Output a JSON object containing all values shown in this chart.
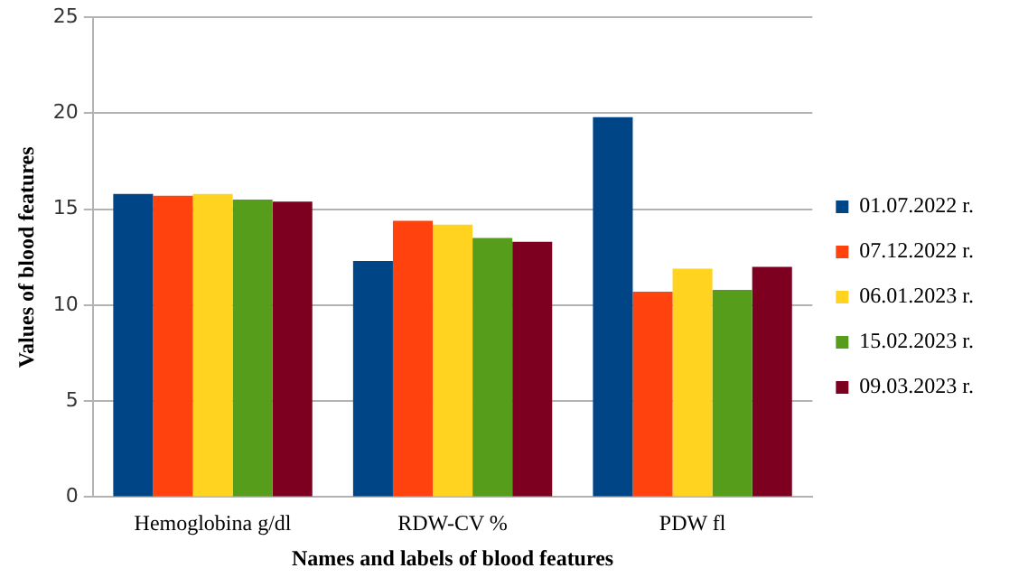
{
  "chart_data": {
    "type": "bar",
    "xlabel": "Names and labels of blood features",
    "ylabel": "Values of blood features",
    "categories": [
      "Hemoglobina g/dl",
      "RDW-CV %",
      "PDW fl"
    ],
    "series": [
      {
        "name": "01.07.2022 r.",
        "color": "#004586",
        "values": [
          15.8,
          12.3,
          19.8
        ]
      },
      {
        "name": "07.12.2022 r.",
        "color": "#ff420e",
        "values": [
          15.7,
          14.4,
          10.7
        ]
      },
      {
        "name": "06.01.2023 r.",
        "color": "#ffd320",
        "values": [
          15.8,
          14.2,
          11.9
        ]
      },
      {
        "name": "15.02.2023 r.",
        "color": "#579d1c",
        "values": [
          15.5,
          13.5,
          10.8
        ]
      },
      {
        "name": "09.03.2023 r.",
        "color": "#7e0021",
        "values": [
          15.4,
          13.3,
          12.0
        ]
      }
    ],
    "ylim": [
      0,
      25
    ],
    "yticks": [
      0,
      5,
      10,
      15,
      20,
      25
    ],
    "grid": "y",
    "legend": "right"
  }
}
